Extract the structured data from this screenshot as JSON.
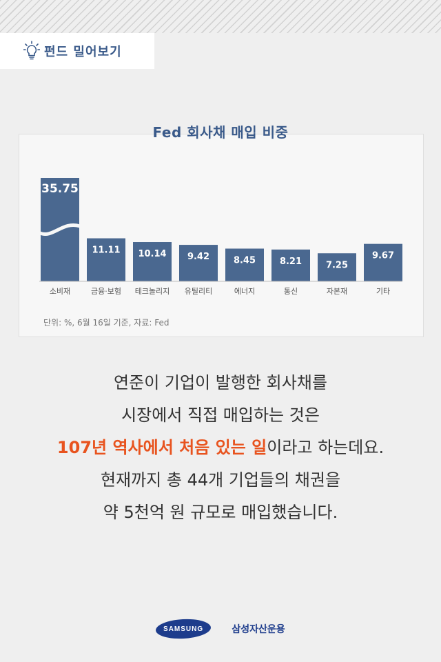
{
  "tag": {
    "label": "펀드 밀어보기",
    "icon": "lightbulb-icon"
  },
  "chart_data": {
    "type": "bar",
    "title": "Fed 회사채 매입 비중",
    "categories": [
      "소비재",
      "금융·보험",
      "테크놀리지",
      "유틸리티",
      "에너지",
      "통신",
      "자본재",
      "기타"
    ],
    "values": [
      35.75,
      11.11,
      10.14,
      9.42,
      8.45,
      8.21,
      7.25,
      9.67
    ],
    "value_labels": [
      "35.75",
      "11.11",
      "10.14",
      "9.42",
      "8.45",
      "8.21",
      "7.25",
      "9.67"
    ],
    "axis_break_on_first_bar": true,
    "bar_color": "#4a6890",
    "ylim": [
      0,
      16
    ],
    "note": "단위: %, 6월 16일 기준, 자료: Fed"
  },
  "body": {
    "line1": "연준이 기업이 발행한 회사채를",
    "line2": "시장에서 직접 매입하는 것은",
    "line3_highlight": "107년 역사에서 처음 있는 일",
    "line3_rest": "이라고 하는데요.",
    "line4": "현재까지 총 44개 기업들의 채권을",
    "line5": "약 5천억 원 규모로 매입했습니다.",
    "highlight_color": "#e8531e"
  },
  "footer": {
    "logo_text": "SAMSUNG",
    "company": "삼성자산운용"
  }
}
